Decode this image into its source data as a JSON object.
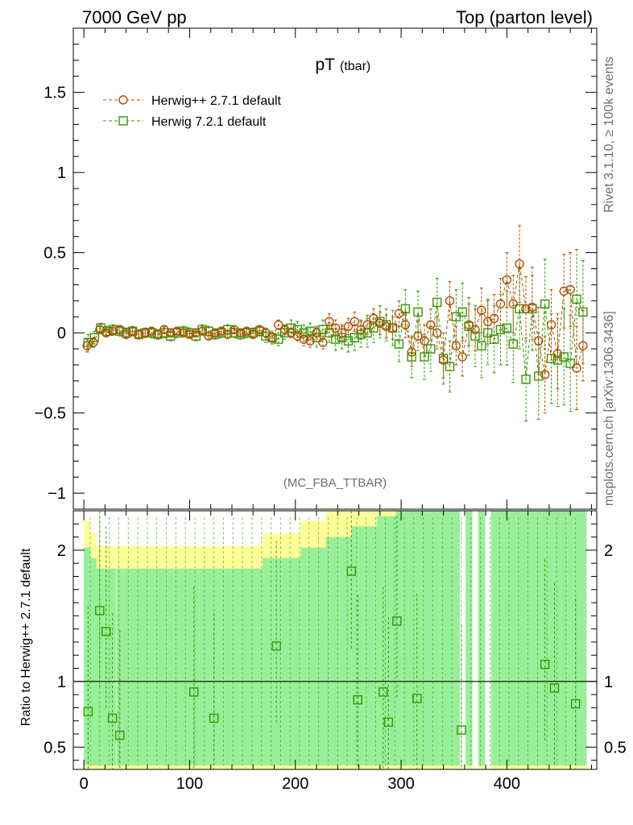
{
  "header": {
    "left": "7000 GeV pp",
    "right": "Top (parton level)"
  },
  "side": {
    "rivet": "Rivet 3.1.10, ≥ 100k events",
    "mcplots": "mcplots.cern.ch [arXiv:1306.3436]"
  },
  "chart_data": {
    "type": "scatter",
    "title": "pT",
    "title_sub": "(tbar)",
    "analysis": "(MC_FBA_TTBAR)",
    "xlim": [
      -10,
      485
    ],
    "x_ticks": [
      0,
      100,
      200,
      300,
      400
    ],
    "top_panel": {
      "ylim": [
        -1.1,
        1.9
      ],
      "y_ticks": [
        -1,
        -0.5,
        0,
        0.5,
        1,
        1.5
      ],
      "y_tick_labels": [
        "−1",
        "−0.5",
        "0",
        "0.5",
        "1",
        "1.5"
      ]
    },
    "ratio_panel": {
      "ylabel": "Ratio to Herwig++ 2.7.1 default",
      "ylim": [
        0.33,
        2.3
      ],
      "y_ticks": [
        0.5,
        1,
        2
      ],
      "y_tick_labels": [
        "0.5",
        "1",
        "2"
      ],
      "reference_line": 1,
      "band_colors": {
        "inner": "#99ee99",
        "outer": "#ffff99"
      },
      "series": [
        {
          "name": "Herwig 7.2.1 default",
          "x": [
            4,
            15,
            21,
            27,
            34,
            104,
            123,
            182,
            253,
            259,
            283,
            288,
            296,
            315,
            357,
            436,
            445,
            465
          ],
          "y": [
            0.77,
            1.54,
            1.38,
            0.72,
            0.59,
            0.92,
            0.72,
            1.27,
            1.84,
            0.86,
            0.92,
            0.69,
            1.46,
            0.87,
            0.63,
            1.13,
            0.95,
            0.83
          ]
        }
      ]
    },
    "series": [
      {
        "name": "Herwig++ 2.7.1 default",
        "color": "#b34d00",
        "marker": "circle",
        "x": [
          3,
          9,
          15,
          21,
          27,
          34,
          40,
          46,
          52,
          58,
          64,
          70,
          76,
          82,
          88,
          94,
          100,
          106,
          112,
          118,
          124,
          130,
          136,
          142,
          148,
          154,
          160,
          166,
          172,
          178,
          184,
          190,
          196,
          202,
          208,
          214,
          220,
          226,
          232,
          238,
          244,
          250,
          256,
          262,
          268,
          274,
          280,
          286,
          292,
          298,
          304,
          310,
          316,
          322,
          328,
          334,
          340,
          346,
          352,
          358,
          364,
          370,
          376,
          382,
          388,
          394,
          400,
          406,
          412,
          418,
          424,
          430,
          436,
          442,
          448,
          454,
          460,
          466,
          472
        ],
        "y": [
          -0.08,
          -0.06,
          0.02,
          0.0,
          0.01,
          0.02,
          -0.01,
          0.01,
          -0.01,
          0.0,
          0.01,
          -0.01,
          0.02,
          0.0,
          0.01,
          0.0,
          -0.01,
          0.0,
          0.01,
          -0.02,
          0.0,
          0.01,
          -0.01,
          0.02,
          0.0,
          0.01,
          -0.01,
          0.02,
          0.0,
          -0.03,
          0.05,
          0.02,
          0.0,
          -0.02,
          -0.04,
          -0.05,
          0.0,
          -0.06,
          0.07,
          0.03,
          0.0,
          0.04,
          0.07,
          0.02,
          0.05,
          0.09,
          0.06,
          0.04,
          0.03,
          0.12,
          0.05,
          -0.12,
          -0.02,
          -0.05,
          0.05,
          0.0,
          -0.17,
          0.2,
          -0.08,
          -0.15,
          0.05,
          0.02,
          0.14,
          0.07,
          0.09,
          0.18,
          0.33,
          0.18,
          0.43,
          0.15,
          0.16,
          -0.05,
          -0.26,
          0.05,
          -0.13,
          0.26,
          0.27,
          -0.22,
          -0.08
        ],
        "err": [
          0.04,
          0.03,
          0.02,
          0.02,
          0.02,
          0.02,
          0.02,
          0.02,
          0.02,
          0.02,
          0.02,
          0.02,
          0.02,
          0.02,
          0.02,
          0.02,
          0.02,
          0.02,
          0.02,
          0.02,
          0.02,
          0.02,
          0.02,
          0.02,
          0.02,
          0.02,
          0.02,
          0.02,
          0.03,
          0.03,
          0.03,
          0.03,
          0.03,
          0.03,
          0.04,
          0.04,
          0.04,
          0.04,
          0.05,
          0.05,
          0.05,
          0.05,
          0.06,
          0.06,
          0.06,
          0.06,
          0.07,
          0.07,
          0.07,
          0.08,
          0.08,
          0.09,
          0.09,
          0.1,
          0.1,
          0.1,
          0.11,
          0.12,
          0.12,
          0.12,
          0.13,
          0.13,
          0.14,
          0.14,
          0.15,
          0.16,
          0.17,
          0.18,
          0.24,
          0.2,
          0.2,
          0.21,
          0.24,
          0.22,
          0.22,
          0.23,
          0.23,
          0.26,
          0.22
        ]
      },
      {
        "name": "Herwig 7.2.1 default",
        "color": "#339900",
        "marker": "square",
        "x": [
          4,
          10,
          16,
          22,
          28,
          34,
          40,
          46,
          52,
          58,
          64,
          70,
          76,
          82,
          88,
          94,
          100,
          106,
          112,
          118,
          124,
          130,
          136,
          142,
          148,
          154,
          160,
          166,
          172,
          178,
          184,
          190,
          196,
          202,
          208,
          214,
          220,
          226,
          232,
          238,
          244,
          250,
          256,
          262,
          268,
          274,
          280,
          286,
          292,
          298,
          304,
          310,
          316,
          322,
          328,
          334,
          340,
          346,
          352,
          358,
          364,
          370,
          376,
          382,
          388,
          394,
          400,
          406,
          412,
          418,
          424,
          430,
          436,
          442,
          448,
          454,
          460,
          466,
          472
        ],
        "y": [
          -0.06,
          -0.03,
          0.03,
          0.01,
          0.02,
          0.01,
          0.0,
          0.01,
          -0.01,
          0.0,
          0.0,
          -0.01,
          0.0,
          -0.02,
          0.0,
          0.01,
          0.0,
          -0.02,
          0.02,
          0.01,
          -0.01,
          0.0,
          0.02,
          0.0,
          -0.01,
          0.0,
          0.0,
          0.01,
          -0.02,
          -0.03,
          -0.04,
          0.0,
          0.03,
          0.02,
          0.0,
          0.01,
          -0.03,
          0.02,
          0.0,
          -0.04,
          -0.03,
          -0.05,
          -0.03,
          -0.01,
          0.0,
          0.03,
          0.07,
          0.05,
          0.03,
          -0.07,
          0.15,
          -0.15,
          0.13,
          -0.15,
          -0.1,
          0.19,
          -0.16,
          -0.21,
          0.1,
          0.13,
          0.04,
          -0.02,
          -0.08,
          0.0,
          -0.04,
          0.02,
          0.03,
          -0.07,
          0.15,
          -0.29,
          0.15,
          -0.27,
          0.18,
          -0.16,
          -0.17,
          -0.15,
          -0.19,
          0.21,
          0.13
        ],
        "err": [
          0.05,
          0.04,
          0.03,
          0.03,
          0.03,
          0.03,
          0.03,
          0.03,
          0.03,
          0.03,
          0.03,
          0.03,
          0.03,
          0.03,
          0.03,
          0.03,
          0.03,
          0.03,
          0.03,
          0.03,
          0.03,
          0.03,
          0.03,
          0.03,
          0.03,
          0.03,
          0.03,
          0.03,
          0.04,
          0.04,
          0.04,
          0.04,
          0.05,
          0.05,
          0.05,
          0.05,
          0.06,
          0.06,
          0.06,
          0.07,
          0.07,
          0.07,
          0.08,
          0.08,
          0.09,
          0.09,
          0.1,
          0.1,
          0.11,
          0.11,
          0.12,
          0.13,
          0.13,
          0.14,
          0.14,
          0.15,
          0.16,
          0.16,
          0.17,
          0.18,
          0.18,
          0.19,
          0.2,
          0.2,
          0.21,
          0.22,
          0.23,
          0.24,
          0.25,
          0.26,
          0.26,
          0.27,
          0.28,
          0.28,
          0.29,
          0.3,
          0.3,
          0.31,
          0.32
        ]
      }
    ]
  }
}
